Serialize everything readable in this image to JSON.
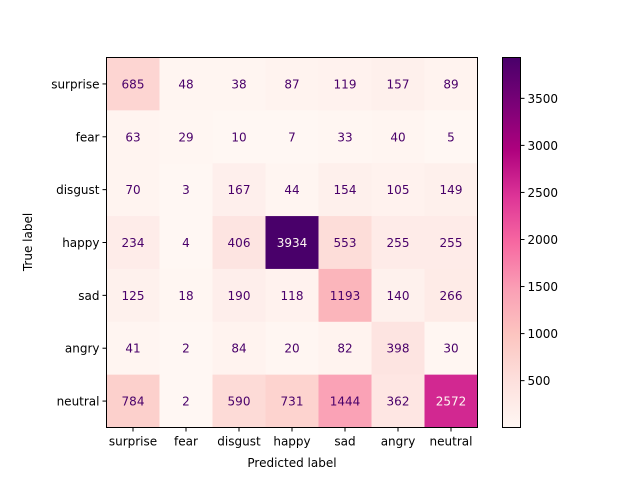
{
  "chart_data": {
    "type": "heatmap",
    "xlabel": "Predicted label",
    "ylabel": "True label",
    "x_categories": [
      "surprise",
      "fear",
      "disgust",
      "happy",
      "sad",
      "angry",
      "neutral"
    ],
    "y_categories": [
      "surprise",
      "fear",
      "disgust",
      "happy",
      "sad",
      "angry",
      "neutral"
    ],
    "matrix": [
      [
        685,
        48,
        38,
        87,
        119,
        157,
        89
      ],
      [
        63,
        29,
        10,
        7,
        33,
        40,
        5
      ],
      [
        70,
        3,
        167,
        44,
        154,
        105,
        149
      ],
      [
        234,
        4,
        406,
        3934,
        553,
        255,
        255
      ],
      [
        125,
        18,
        190,
        118,
        1193,
        140,
        266
      ],
      [
        41,
        2,
        84,
        20,
        82,
        398,
        30
      ],
      [
        784,
        2,
        590,
        731,
        1444,
        362,
        2572
      ]
    ],
    "colormap": "RdPu",
    "colormap_stops": [
      "#fff7f3",
      "#fde0dd",
      "#fcc5c0",
      "#fa9fb5",
      "#f768a1",
      "#dd3497",
      "#ae017e",
      "#7a0177",
      "#49006a"
    ],
    "value_range": [
      2,
      3934
    ],
    "text_color_light_cells": "#49006a",
    "text_color_dark_cells": "#fff7f3",
    "colorbar_ticks": [
      500,
      1000,
      1500,
      2000,
      2500,
      3000,
      3500
    ],
    "grid": false,
    "colorbar_position": "right"
  }
}
